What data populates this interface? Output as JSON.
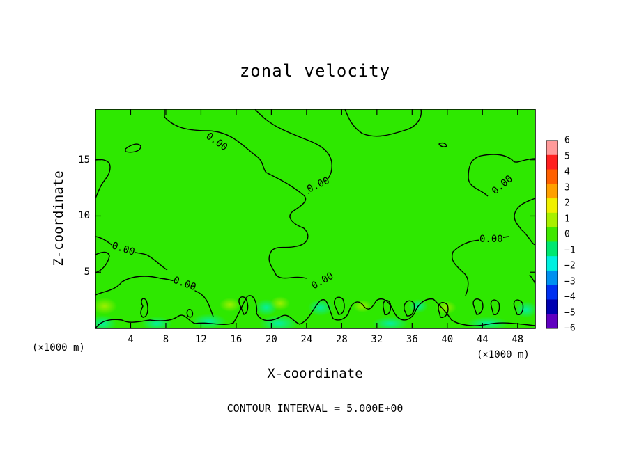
{
  "chart_data": {
    "type": "heatmap",
    "title": "zonal velocity",
    "xlabel": "X-coordinate",
    "ylabel": "Z-coordinate",
    "x_unit_label": "(×1000 m)",
    "xlim": [
      0,
      50
    ],
    "ylim": [
      0,
      19.5
    ],
    "x_ticks": [
      "4",
      "8",
      "12",
      "16",
      "20",
      "24",
      "28",
      "32",
      "36",
      "40",
      "44",
      "48"
    ],
    "y_ticks": [
      "5",
      "10",
      "15"
    ],
    "contour_labels": [
      "0.00",
      "0.00",
      "0.00",
      "0.00",
      "0.00",
      "0.00",
      "0.00"
    ],
    "contour_interval": "CONTOUR INTERVAL = 5.000E+00",
    "colorbar": {
      "labels": [
        "6",
        "5",
        "4",
        "3",
        "2",
        "1",
        "0",
        "−1",
        "−2",
        "−3",
        "−4",
        "−5",
        "−6"
      ],
      "colors": [
        "#ff9a9a",
        "#ff2020",
        "#ff6000",
        "#ffa000",
        "#f0f000",
        "#a8f000",
        "#40e800",
        "#00e870",
        "#00f0e0",
        "#0090f0",
        "#0030f0",
        "#0000b0",
        "#6000c0"
      ]
    },
    "field_value": 0,
    "field_color": "#2ee800"
  }
}
